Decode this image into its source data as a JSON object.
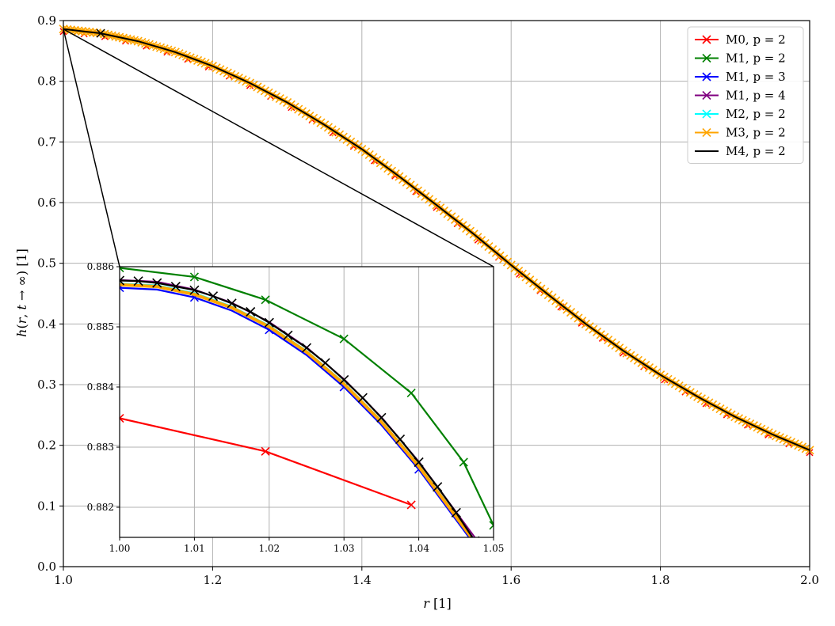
{
  "chart_data": {
    "type": "line",
    "xlabel": "r [1]",
    "ylabel": "h(r, t → ∞) [1]",
    "xlim": [
      1.0,
      2.0
    ],
    "ylim": [
      0.0,
      0.9
    ],
    "xticks": [
      "1.0",
      "1.2",
      "1.4",
      "1.6",
      "1.8",
      "2.0"
    ],
    "yticks": [
      "0.0",
      "0.1",
      "0.2",
      "0.3",
      "0.4",
      "0.5",
      "0.6",
      "0.7",
      "0.8",
      "0.9"
    ],
    "grid": true,
    "legend_position": "top-right",
    "series": [
      {
        "name": "M0, p = 2",
        "color": "#ff0000",
        "marker": "x"
      },
      {
        "name": "M1, p = 2",
        "color": "#008000",
        "marker": "x"
      },
      {
        "name": "M1, p = 3",
        "color": "#0000ff",
        "marker": "x"
      },
      {
        "name": "M1, p = 4",
        "color": "#800080",
        "marker": "x"
      },
      {
        "name": "M2, p = 2",
        "color": "#00ffff",
        "marker": "x"
      },
      {
        "name": "M3, p = 2",
        "color": "#ffa500",
        "marker": "x"
      },
      {
        "name": "M4, p = 2",
        "color": "#000000",
        "marker": "none"
      }
    ],
    "main_curve": {
      "x": [
        1.0,
        1.05,
        1.1,
        1.15,
        1.2,
        1.25,
        1.3,
        1.35,
        1.4,
        1.45,
        1.5,
        1.55,
        1.6,
        1.65,
        1.7,
        1.75,
        1.8,
        1.85,
        1.9,
        1.95,
        2.0
      ],
      "y": [
        0.886,
        0.879,
        0.866,
        0.848,
        0.825,
        0.797,
        0.765,
        0.728,
        0.688,
        0.643,
        0.596,
        0.548,
        0.497,
        0.448,
        0.4,
        0.356,
        0.316,
        0.28,
        0.247,
        0.218,
        0.192
      ]
    },
    "inset": {
      "xlim": [
        1.0,
        1.05
      ],
      "ylim": [
        0.8815,
        0.886
      ],
      "xticks": [
        "1.00",
        "1.01",
        "1.02",
        "1.03",
        "1.04",
        "1.05"
      ],
      "yticks": [
        "0.882",
        "0.883",
        "0.884",
        "0.885",
        "0.886"
      ],
      "series": [
        {
          "name": "M0, p = 2",
          "x": [
            1.0,
            1.0195,
            1.039
          ],
          "y": [
            0.88348,
            0.88293,
            0.88204
          ]
        },
        {
          "name": "M1, p = 2",
          "x": [
            1.0,
            1.01,
            1.0195,
            1.03,
            1.039,
            1.046,
            1.05
          ],
          "y": [
            0.88598,
            0.88583,
            0.88545,
            0.8848,
            0.8839,
            0.88275,
            0.8817
          ]
        },
        {
          "name": "M1, p = 3",
          "x": [
            1.0,
            1.005,
            1.01,
            1.015,
            1.02,
            1.025,
            1.03,
            1.035,
            1.04,
            1.045,
            1.05
          ],
          "y": [
            0.88565,
            0.88562,
            0.88549,
            0.88527,
            0.88495,
            0.88453,
            0.884,
            0.88337,
            0.88263,
            0.88179,
            0.88095
          ]
        },
        {
          "name": "M1, p = 4",
          "x": [
            1.0,
            1.005,
            1.01,
            1.015,
            1.02,
            1.025,
            1.03,
            1.035,
            1.04,
            1.045,
            1.05
          ],
          "y": [
            0.88578,
            0.88575,
            0.88562,
            0.8854,
            0.88508,
            0.88466,
            0.88413,
            0.8835,
            0.88276,
            0.88192,
            0.88108
          ]
        },
        {
          "name": "M2, p = 2",
          "x": [
            1.0,
            1.005,
            1.01,
            1.015,
            1.02,
            1.025,
            1.03,
            1.035,
            1.04,
            1.045,
            1.05
          ],
          "y": [
            0.88572,
            0.88569,
            0.88556,
            0.88534,
            0.88502,
            0.8846,
            0.88407,
            0.88344,
            0.8827,
            0.88186,
            0.88102
          ]
        },
        {
          "name": "M3, p = 2",
          "x": [
            1.0,
            1.005,
            1.01,
            1.015,
            1.02,
            1.025,
            1.03,
            1.035,
            1.04,
            1.045,
            1.05
          ],
          "y": [
            0.8857,
            0.88567,
            0.88554,
            0.88532,
            0.885,
            0.88458,
            0.88405,
            0.88342,
            0.88268,
            0.88184,
            0.881
          ]
        },
        {
          "name": "M4, p = 2",
          "x": [
            1.0,
            1.0025,
            1.005,
            1.0075,
            1.01,
            1.0125,
            1.015,
            1.0175,
            1.02,
            1.0225,
            1.025,
            1.0275,
            1.03,
            1.0325,
            1.035,
            1.0375,
            1.04,
            1.0425,
            1.045,
            1.0475,
            1.05
          ],
          "y": [
            0.88577,
            0.88576,
            0.88573,
            0.88567,
            0.88561,
            0.88551,
            0.88539,
            0.88525,
            0.88507,
            0.88486,
            0.88465,
            0.8844,
            0.88412,
            0.88382,
            0.88349,
            0.88313,
            0.88275,
            0.88234,
            0.88191,
            0.88144,
            0.88107
          ]
        }
      ]
    }
  }
}
